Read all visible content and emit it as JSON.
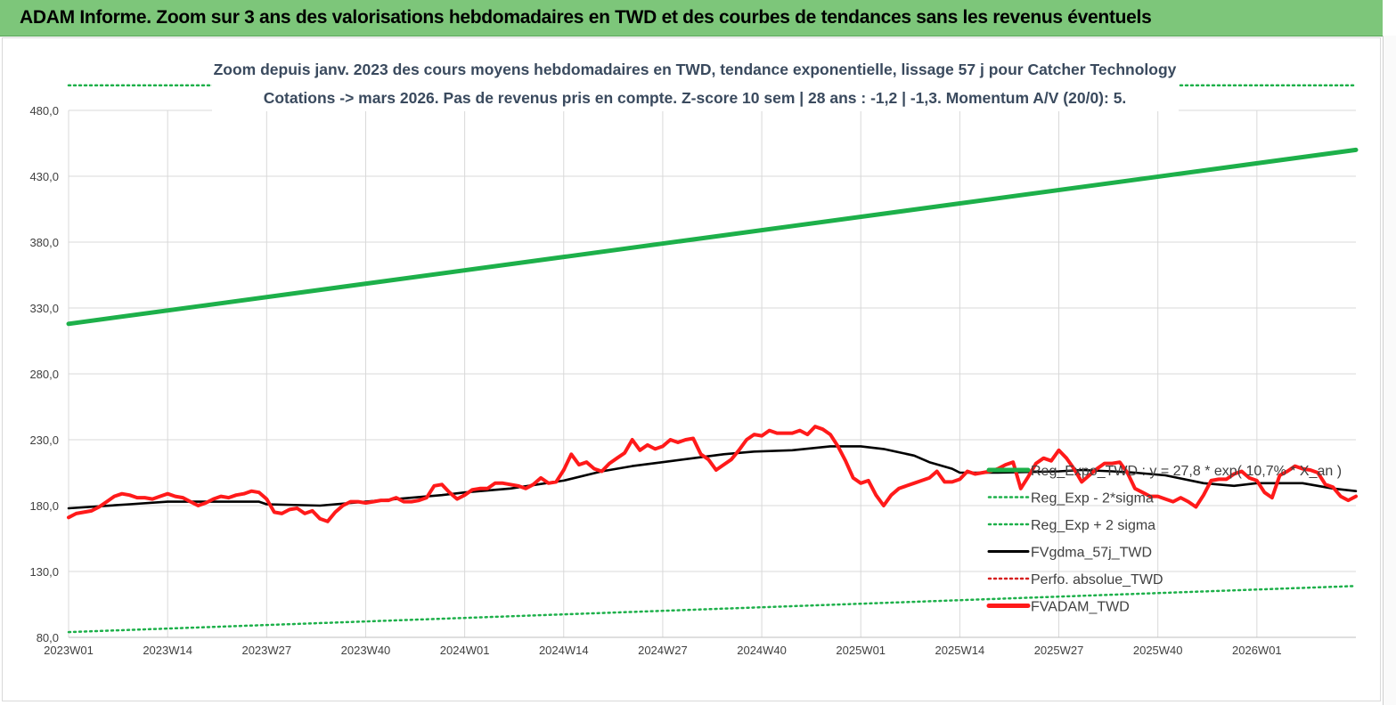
{
  "banner": {
    "title": "ADAM Informe. Zoom sur 3 ans des valorisations hebdomadaires en TWD et des courbes de tendances sans les revenus éventuels",
    "color": "#7dc67a"
  },
  "chart_data": {
    "type": "line",
    "title_line1": "Zoom depuis janv. 2023 des cours moyens hebdomadaires en TWD, tendance exponentielle, lissage 57 j pour Catcher Technology",
    "title_line2": "Cotations -> mars 2026. Pas de revenus pris en  compte. Z-score 10 sem  | 28 ans : -1,2 | -1,3. Momentum A/V (20/0): 5.",
    "ylim": [
      80,
      480
    ],
    "yticks": [
      "480,0",
      "430,0",
      "380,0",
      "330,0",
      "280,0",
      "230,0",
      "180,0",
      "130,0",
      "80,0"
    ],
    "xticks": [
      "2023W01",
      "2023W14",
      "2023W27",
      "2023W40",
      "2024W01",
      "2024W14",
      "2024W27",
      "2024W40",
      "2025W01",
      "2025W14",
      "2025W27",
      "2025W40",
      "2026W01"
    ],
    "grid": true,
    "legend_position": "bottom-right",
    "legend": [
      {
        "label": "Reg_Expo_TWD : y = 27,8 * exp( 10,7% * X_an )",
        "color": "#1db04a",
        "style": "solid-thick"
      },
      {
        "label": "Reg_Exp - 2*sigma",
        "color": "#1db04a",
        "style": "dotted"
      },
      {
        "label": "Reg_Exp + 2 sigma",
        "color": "#1db04a",
        "style": "dotted"
      },
      {
        "label": "FVgdma_57j_TWD",
        "color": "#000000",
        "style": "solid"
      },
      {
        "label": "Perfo. absolue_TWD",
        "color": "#d62020",
        "style": "dotted"
      },
      {
        "label": "FVADAM_TWD",
        "color": "#ff1a1a",
        "style": "solid-thick"
      }
    ],
    "series": [
      {
        "name": "Reg_Expo_TWD",
        "color": "#1db04a",
        "points": [
          [
            0,
            318
          ],
          [
            169,
            450
          ]
        ]
      },
      {
        "name": "Reg_Exp - 2*sigma",
        "color": "#1db04a",
        "points": [
          [
            0,
            84
          ],
          [
            169,
            119
          ]
        ]
      },
      {
        "name": "Reg_Exp + 2 sigma",
        "color": "#1db04a",
        "points": [
          [
            0,
            499
          ],
          [
            169,
            499
          ]
        ]
      },
      {
        "name": "FVgdma_57j_TWD",
        "color": "#000000",
        "points": [
          [
            0,
            178
          ],
          [
            8,
            181
          ],
          [
            13,
            183
          ],
          [
            25,
            183
          ],
          [
            26,
            181
          ],
          [
            33,
            180
          ],
          [
            39,
            183
          ],
          [
            49,
            188
          ],
          [
            52,
            190
          ],
          [
            58,
            193
          ],
          [
            65,
            199
          ],
          [
            70,
            206
          ],
          [
            74,
            210
          ],
          [
            78,
            213
          ],
          [
            86,
            219
          ],
          [
            90,
            221
          ],
          [
            95,
            222
          ],
          [
            100,
            225
          ],
          [
            104,
            225
          ],
          [
            107,
            223
          ],
          [
            111,
            218
          ],
          [
            113,
            213
          ],
          [
            116,
            208
          ],
          [
            117,
            205
          ],
          [
            122,
            205
          ],
          [
            130,
            206
          ],
          [
            133,
            207
          ],
          [
            137,
            206
          ],
          [
            140,
            205
          ],
          [
            144,
            203
          ],
          [
            149,
            197
          ],
          [
            153,
            195
          ],
          [
            156,
            197
          ],
          [
            162,
            197
          ],
          [
            166,
            193
          ],
          [
            169,
            191
          ]
        ]
      },
      {
        "name": "FVADAM_TWD",
        "color": "#ff1a1a",
        "points": [
          [
            0,
            171
          ],
          [
            1,
            174
          ],
          [
            2,
            175
          ],
          [
            3,
            176
          ],
          [
            4,
            179
          ],
          [
            5,
            183
          ],
          [
            6,
            187
          ],
          [
            7,
            189
          ],
          [
            8,
            188
          ],
          [
            9,
            186
          ],
          [
            10,
            186
          ],
          [
            11,
            185
          ],
          [
            12,
            187
          ],
          [
            13,
            189
          ],
          [
            14,
            187
          ],
          [
            15,
            186
          ],
          [
            16,
            183
          ],
          [
            17,
            180
          ],
          [
            18,
            182
          ],
          [
            19,
            185
          ],
          [
            20,
            187
          ],
          [
            21,
            186
          ],
          [
            22,
            188
          ],
          [
            23,
            189
          ],
          [
            24,
            191
          ],
          [
            25,
            190
          ],
          [
            26,
            185
          ],
          [
            27,
            175
          ],
          [
            28,
            174
          ],
          [
            29,
            177
          ],
          [
            30,
            178
          ],
          [
            31,
            174
          ],
          [
            32,
            176
          ],
          [
            33,
            170
          ],
          [
            34,
            168
          ],
          [
            35,
            175
          ],
          [
            36,
            180
          ],
          [
            37,
            183
          ],
          [
            38,
            183
          ],
          [
            39,
            182
          ],
          [
            40,
            183
          ],
          [
            41,
            184
          ],
          [
            42,
            184
          ],
          [
            43,
            186
          ],
          [
            44,
            183
          ],
          [
            45,
            183
          ],
          [
            46,
            184
          ],
          [
            47,
            186
          ],
          [
            48,
            195
          ],
          [
            49,
            196
          ],
          [
            50,
            190
          ],
          [
            51,
            185
          ],
          [
            52,
            188
          ],
          [
            53,
            192
          ],
          [
            54,
            193
          ],
          [
            55,
            193
          ],
          [
            56,
            197
          ],
          [
            57,
            197
          ],
          [
            58,
            196
          ],
          [
            59,
            195
          ],
          [
            60,
            193
          ],
          [
            61,
            196
          ],
          [
            62,
            201
          ],
          [
            63,
            197
          ],
          [
            64,
            198
          ],
          [
            65,
            207
          ],
          [
            66,
            219
          ],
          [
            67,
            211
          ],
          [
            68,
            213
          ],
          [
            69,
            208
          ],
          [
            70,
            206
          ],
          [
            71,
            212
          ],
          [
            72,
            216
          ],
          [
            73,
            220
          ],
          [
            74,
            230
          ],
          [
            75,
            222
          ],
          [
            76,
            226
          ],
          [
            77,
            223
          ],
          [
            78,
            225
          ],
          [
            79,
            230
          ],
          [
            80,
            228
          ],
          [
            81,
            230
          ],
          [
            82,
            231
          ],
          [
            83,
            219
          ],
          [
            84,
            215
          ],
          [
            85,
            207
          ],
          [
            86,
            211
          ],
          [
            87,
            215
          ],
          [
            88,
            222
          ],
          [
            89,
            230
          ],
          [
            90,
            234
          ],
          [
            91,
            233
          ],
          [
            92,
            237
          ],
          [
            93,
            235
          ],
          [
            94,
            235
          ],
          [
            95,
            235
          ],
          [
            96,
            237
          ],
          [
            97,
            234
          ],
          [
            98,
            240
          ],
          [
            99,
            238
          ],
          [
            100,
            234
          ],
          [
            101,
            225
          ],
          [
            102,
            214
          ],
          [
            103,
            201
          ],
          [
            104,
            197
          ],
          [
            105,
            199
          ],
          [
            106,
            188
          ],
          [
            107,
            180
          ],
          [
            108,
            188
          ],
          [
            109,
            193
          ],
          [
            110,
            195
          ],
          [
            111,
            197
          ],
          [
            112,
            199
          ],
          [
            113,
            201
          ],
          [
            114,
            206
          ],
          [
            115,
            198
          ],
          [
            116,
            198
          ],
          [
            117,
            200
          ],
          [
            118,
            206
          ],
          [
            119,
            204
          ],
          [
            120,
            205
          ],
          [
            121,
            206
          ],
          [
            122,
            208
          ],
          [
            123,
            211
          ],
          [
            124,
            213
          ],
          [
            125,
            193
          ],
          [
            126,
            202
          ],
          [
            127,
            212
          ],
          [
            128,
            216
          ],
          [
            129,
            214
          ],
          [
            130,
            222
          ],
          [
            131,
            216
          ],
          [
            132,
            208
          ],
          [
            133,
            198
          ],
          [
            134,
            203
          ],
          [
            135,
            208
          ],
          [
            136,
            212
          ],
          [
            137,
            212
          ],
          [
            138,
            213
          ],
          [
            139,
            205
          ],
          [
            140,
            193
          ],
          [
            141,
            190
          ],
          [
            142,
            187
          ],
          [
            143,
            187
          ],
          [
            144,
            185
          ],
          [
            145,
            183
          ],
          [
            146,
            186
          ],
          [
            147,
            183
          ],
          [
            148,
            179
          ],
          [
            149,
            188
          ],
          [
            150,
            199
          ],
          [
            151,
            200
          ],
          [
            152,
            200
          ],
          [
            153,
            204
          ],
          [
            154,
            206
          ],
          [
            155,
            201
          ],
          [
            156,
            199
          ],
          [
            157,
            190
          ],
          [
            158,
            186
          ],
          [
            159,
            203
          ],
          [
            160,
            206
          ],
          [
            161,
            210
          ],
          [
            162,
            208
          ],
          [
            163,
            207
          ],
          [
            164,
            205
          ],
          [
            165,
            196
          ],
          [
            166,
            194
          ],
          [
            167,
            187
          ],
          [
            168,
            184
          ],
          [
            169,
            187
          ]
        ]
      }
    ]
  }
}
